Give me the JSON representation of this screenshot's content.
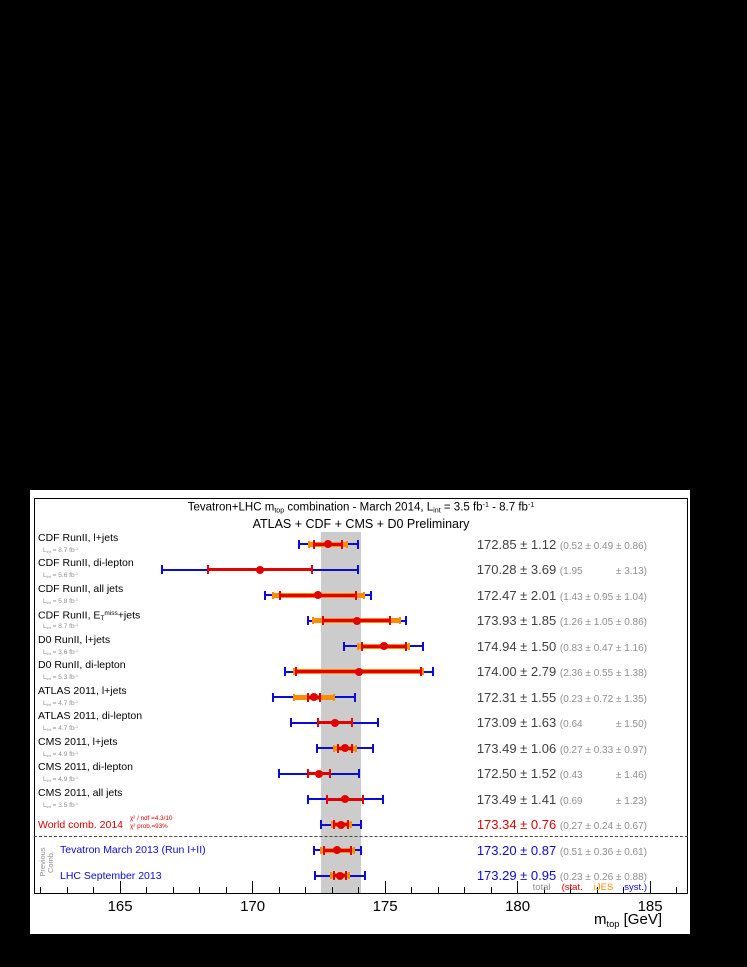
{
  "colors": {
    "red": "#e10000",
    "blue": "#0b0bd6",
    "orange": "#ff8c00",
    "band": "#cccccc",
    "value_default": "#3f3f3f",
    "paren": "#8f8f8f",
    "label_default": "#000000"
  },
  "chart_data": {
    "type": "scatter",
    "title_parts": [
      {
        "t": "Tevatron+LHC m"
      },
      {
        "sub": "top"
      },
      {
        "t": " combination - March 2014,  L"
      },
      {
        "sub": "int"
      },
      {
        "t": " = 3.5 fb"
      },
      {
        "sup": "-1"
      },
      {
        "t": " - 8.7 fb"
      },
      {
        "sup": "-1"
      }
    ],
    "subtitle": "ATLAS + CDF + CMS + D0 Preliminary",
    "x_axis": {
      "min": 161.75,
      "max": 186.43,
      "major_ticks": [
        165,
        170,
        175,
        180,
        185
      ],
      "title_parts": [
        {
          "t": "m"
        },
        {
          "sub": "top"
        },
        {
          "t": " [GeV]"
        }
      ]
    },
    "world_average_band": {
      "center": 173.34,
      "half_width": 0.76
    },
    "legend": [
      {
        "label": "total",
        "color": "#8f8f8f"
      },
      {
        "label": "(stat.",
        "color": "#e10000"
      },
      {
        "label": "iJES",
        "color": "#ff8c00"
      },
      {
        "label": "syst.)",
        "color": "#0b0bd6"
      }
    ],
    "previous_comb_label_lines": [
      "Previous",
      "Comb."
    ],
    "lumi_prefix_parts": [
      {
        "t": "L"
      },
      {
        "sub": "int"
      },
      {
        "t": " = "
      }
    ],
    "lumi_suffix_parts": [
      {
        "t": " fb"
      },
      {
        "sup": "-1"
      }
    ],
    "measurements": [
      {
        "label": "CDF RunII, l+jets",
        "lumi": "8.7",
        "value": "172.85",
        "total": "1.12",
        "stat": "0.52",
        "ijes": "0.49",
        "syst": "0.86",
        "color": "default"
      },
      {
        "label": "CDF RunII, di-lepton",
        "lumi": "5.6",
        "value": "170.28",
        "total": "3.69",
        "stat": "1.95",
        "ijes": "",
        "syst": "3.13",
        "color": "default"
      },
      {
        "label": "CDF RunII, all jets",
        "lumi": "5.8",
        "value": "172.47",
        "total": "2.01",
        "stat": "1.43",
        "ijes": "0.95",
        "syst": "1.04",
        "color": "default"
      },
      {
        "label": "CDF RunII, ET miss+jets",
        "label_parts": [
          {
            "t": "CDF RunII, E"
          },
          {
            "sub": "T"
          },
          {
            "sup": "miss"
          },
          {
            "t": "+jets"
          }
        ],
        "lumi": "8.7",
        "value": "173.93",
        "total": "1.85",
        "stat": "1.26",
        "ijes": "1.05",
        "syst": "0.86",
        "color": "default"
      },
      {
        "label": "D0 RunII, l+jets",
        "lumi": "3.6",
        "value": "174.94",
        "total": "1.50",
        "stat": "0.83",
        "ijes": "0.47",
        "syst": "1.16",
        "color": "default"
      },
      {
        "label": "D0 RunII, di-lepton",
        "lumi": "5.3",
        "value": "174.00",
        "total": "2.79",
        "stat": "2.36",
        "ijes": "0.55",
        "syst": "1.38",
        "color": "default"
      },
      {
        "label": "ATLAS 2011, l+jets",
        "lumi": "4.7",
        "value": "172.31",
        "total": "1.55",
        "stat": "0.23",
        "ijes": "0.72",
        "syst": "1.35",
        "color": "default"
      },
      {
        "label": "ATLAS 2011, di-lepton",
        "lumi": "4.7",
        "value": "173.09",
        "total": "1.63",
        "stat": "0.64",
        "ijes": "",
        "syst": "1.50",
        "color": "default"
      },
      {
        "label": "CMS 2011, l+jets",
        "lumi": "4.9",
        "value": "173.49",
        "total": "1.06",
        "stat": "0.27",
        "ijes": "0.33",
        "syst": "0.97",
        "color": "default"
      },
      {
        "label": "CMS 2011, di-lepton",
        "lumi": "4.9",
        "value": "172.50",
        "total": "1.52",
        "stat": "0.43",
        "ijes": "",
        "syst": "1.46",
        "color": "default"
      },
      {
        "label": "CMS 2011, all jets",
        "lumi": "3.5",
        "value": "173.49",
        "total": "1.41",
        "stat": "0.69",
        "ijes": "",
        "syst": "1.23",
        "color": "default"
      },
      {
        "label": "World comb. 2014",
        "chi2_lines": [
          "χ² / ndf =4.3/10",
          "χ² prob.=93%"
        ],
        "value": "173.34",
        "total": "0.76",
        "stat": "0.27",
        "ijes": "0.24",
        "syst": "0.67",
        "color": "red"
      },
      {
        "label": "Tevatron March 2013 (Run I+II)",
        "value": "173.20",
        "total": "0.87",
        "stat": "0.51",
        "ijes": "0.36",
        "syst": "0.61",
        "color": "blue",
        "indent": true
      },
      {
        "label": "LHC September 2013",
        "value": "173.29",
        "total": "0.95",
        "stat": "0.23",
        "ijes": "0.26",
        "syst": "0.88",
        "color": "blue",
        "indent": true
      }
    ]
  }
}
